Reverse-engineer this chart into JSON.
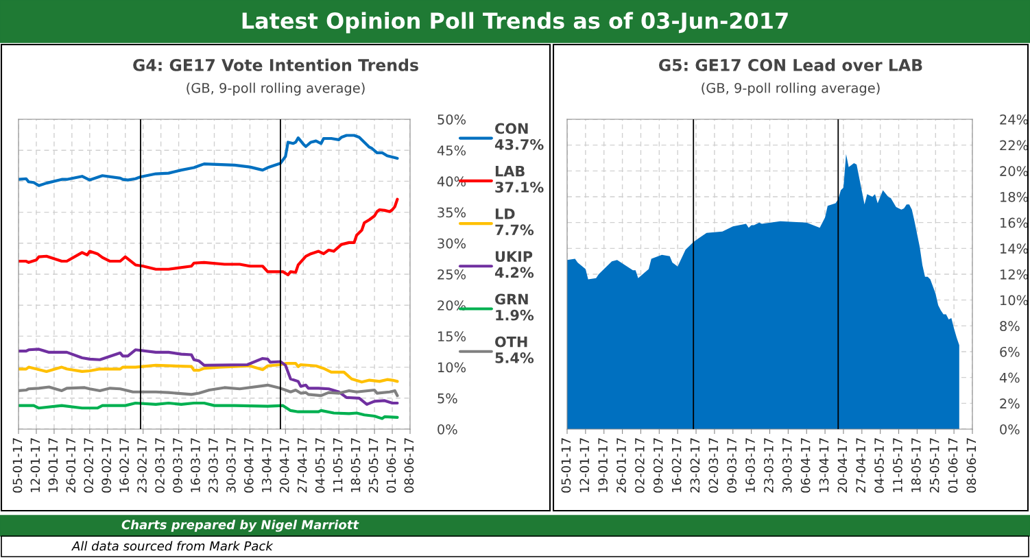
{
  "chart_data": [
    {
      "type": "line",
      "title": "G4: GE17 Vote Intention Trends",
      "subtitle": "(GB, 9-poll rolling average)",
      "annotations": [
        "Latest Opinion Poll Trends as of 03-Jun-2017",
        "Charts prepared by Nigel Marriott",
        "All data sourced from Mark Pack"
      ],
      "xlim": [
        "2017-01-05",
        "2017-06-08"
      ],
      "xticks": [
        {
          "value": "2017-01-05",
          "label": "05-01-17"
        },
        {
          "value": "2017-01-12",
          "label": "12-01-17"
        },
        {
          "value": "2017-01-19",
          "label": "19-01-17"
        },
        {
          "value": "2017-01-26",
          "label": "26-01-17"
        },
        {
          "value": "2017-02-02",
          "label": "02-02-17"
        },
        {
          "value": "2017-02-09",
          "label": "09-02-17"
        },
        {
          "value": "2017-02-16",
          "label": "16-02-17"
        },
        {
          "value": "2017-02-23",
          "label": "23-02-17"
        },
        {
          "value": "2017-03-02",
          "label": "02-03-17"
        },
        {
          "value": "2017-03-09",
          "label": "09-03-17"
        },
        {
          "value": "2017-03-16",
          "label": "16-03-17"
        },
        {
          "value": "2017-03-23",
          "label": "23-03-17"
        },
        {
          "value": "2017-03-30",
          "label": "30-03-17"
        },
        {
          "value": "2017-04-06",
          "label": "06-04-17"
        },
        {
          "value": "2017-04-13",
          "label": "13-04-17"
        },
        {
          "value": "2017-04-20",
          "label": "20-04-17"
        },
        {
          "value": "2017-04-27",
          "label": "27-04-17"
        },
        {
          "value": "2017-05-04",
          "label": "04-05-17"
        },
        {
          "value": "2017-05-11",
          "label": "11-05-17"
        },
        {
          "value": "2017-05-18",
          "label": "18-05-17"
        },
        {
          "value": "2017-05-25",
          "label": "25-05-17"
        },
        {
          "value": "2017-06-01",
          "label": "01-06-17"
        },
        {
          "value": "2017-06-08",
          "label": "08-06-17"
        }
      ],
      "ylim": [
        0,
        50
      ],
      "yticks": [
        {
          "value": 0,
          "label": "0%"
        },
        {
          "value": 5,
          "label": "5%"
        },
        {
          "value": 10,
          "label": "10%"
        },
        {
          "value": 15,
          "label": "15%"
        },
        {
          "value": 20,
          "label": "20%"
        },
        {
          "value": 25,
          "label": "25%"
        },
        {
          "value": 30,
          "label": "30%"
        },
        {
          "value": 35,
          "label": "35%"
        },
        {
          "value": 40,
          "label": "40%"
        },
        {
          "value": 45,
          "label": "45%"
        },
        {
          "value": 50,
          "label": "50%"
        }
      ],
      "grid": true,
      "legend": "right",
      "ref_lines": [
        {
          "axis": "x",
          "value": "2017-02-22",
          "color": "#000000"
        },
        {
          "axis": "x",
          "value": "2017-04-18",
          "color": "#000000"
        }
      ],
      "series": [
        {
          "name": "CON 43.7%",
          "color": "#0070c0",
          "x": [
            "2017-01-05",
            "2017-01-08",
            "2017-01-09",
            "2017-01-11",
            "2017-01-13",
            "2017-01-16",
            "2017-01-22",
            "2017-01-24",
            "2017-01-30",
            "2017-02-02",
            "2017-02-07",
            "2017-02-14",
            "2017-02-15",
            "2017-02-17",
            "2017-02-20",
            "2017-02-22",
            "2017-02-28",
            "2017-03-05",
            "2017-03-10",
            "2017-03-15",
            "2017-03-17",
            "2017-03-19",
            "2017-03-31",
            "2017-04-06",
            "2017-04-11",
            "2017-04-13",
            "2017-04-18",
            "2017-04-20",
            "2017-04-21",
            "2017-04-23",
            "2017-04-24",
            "2017-04-25",
            "2017-04-27",
            "2017-04-28",
            "2017-04-30",
            "2017-05-02",
            "2017-05-04",
            "2017-05-05",
            "2017-05-08",
            "2017-05-11",
            "2017-05-12",
            "2017-05-14",
            "2017-05-17",
            "2017-05-19",
            "2017-05-21",
            "2017-05-23",
            "2017-05-24",
            "2017-05-26",
            "2017-05-28",
            "2017-05-30",
            "2017-06-02",
            "2017-06-03"
          ],
          "values": [
            40.3,
            40.4,
            39.9,
            39.8,
            39.3,
            39.7,
            40.3,
            40.3,
            40.8,
            40.2,
            40.9,
            40.5,
            40.3,
            40.2,
            40.4,
            40.7,
            41.2,
            41.3,
            41.8,
            42.2,
            42.5,
            42.8,
            42.6,
            42.3,
            41.8,
            42.2,
            42.9,
            44.0,
            46.3,
            46.1,
            46.3,
            47.0,
            46.0,
            45.6,
            46.3,
            46.5,
            46.1,
            46.9,
            46.9,
            46.7,
            47.1,
            47.4,
            47.4,
            47.1,
            46.3,
            45.5,
            45.3,
            44.6,
            44.6,
            44.1,
            43.8,
            43.7
          ]
        },
        {
          "name": "LAB 37.1%",
          "color": "#ff0000",
          "x": [
            "2017-01-05",
            "2017-01-08",
            "2017-01-09",
            "2017-01-12",
            "2017-01-13",
            "2017-01-16",
            "2017-01-22",
            "2017-01-24",
            "2017-01-30",
            "2017-02-01",
            "2017-02-02",
            "2017-02-05",
            "2017-02-07",
            "2017-02-10",
            "2017-02-14",
            "2017-02-16",
            "2017-02-20",
            "2017-02-23",
            "2017-02-28",
            "2017-03-05",
            "2017-03-14",
            "2017-03-15",
            "2017-03-19",
            "2017-03-27",
            "2017-04-02",
            "2017-04-06",
            "2017-04-11",
            "2017-04-13",
            "2017-04-19",
            "2017-04-21",
            "2017-04-22",
            "2017-04-24",
            "2017-04-25",
            "2017-04-28",
            "2017-04-30",
            "2017-05-03",
            "2017-05-05",
            "2017-05-07",
            "2017-05-09",
            "2017-05-12",
            "2017-05-15",
            "2017-05-17",
            "2017-05-18",
            "2017-05-20",
            "2017-05-21",
            "2017-05-23",
            "2017-05-25",
            "2017-05-26",
            "2017-05-27",
            "2017-05-29",
            "2017-05-31",
            "2017-06-01",
            "2017-06-02",
            "2017-06-03"
          ],
          "values": [
            27.1,
            27.1,
            26.9,
            27.3,
            27.8,
            27.9,
            27.1,
            27.1,
            28.5,
            28.1,
            28.7,
            28.3,
            27.7,
            27.1,
            27.1,
            27.8,
            26.5,
            26.3,
            25.8,
            25.8,
            26.3,
            26.8,
            26.9,
            26.6,
            26.6,
            26.3,
            26.3,
            25.4,
            25.4,
            24.9,
            25.4,
            25.3,
            26.5,
            27.9,
            28.3,
            28.7,
            28.3,
            28.9,
            28.7,
            29.8,
            30.1,
            30.1,
            31.3,
            32.1,
            33.3,
            33.8,
            34.4,
            35.1,
            35.4,
            35.3,
            35.1,
            35.4,
            35.9,
            37.1
          ]
        },
        {
          "name": "LD 7.7%",
          "color": "#ffc000",
          "x": [
            "2017-01-05",
            "2017-01-08",
            "2017-01-09",
            "2017-01-12",
            "2017-01-16",
            "2017-01-22",
            "2017-01-24",
            "2017-01-30",
            "2017-02-02",
            "2017-02-06",
            "2017-02-14",
            "2017-02-15",
            "2017-02-20",
            "2017-02-28",
            "2017-03-14",
            "2017-03-15",
            "2017-03-17",
            "2017-03-19",
            "2017-03-25",
            "2017-04-06",
            "2017-04-11",
            "2017-04-13",
            "2017-04-18",
            "2017-04-20",
            "2017-04-24",
            "2017-04-25",
            "2017-04-26",
            "2017-05-02",
            "2017-05-05",
            "2017-05-08",
            "2017-05-13",
            "2017-05-16",
            "2017-05-20",
            "2017-05-23",
            "2017-05-27",
            "2017-05-30",
            "2017-06-01",
            "2017-06-03"
          ],
          "values": [
            9.7,
            9.7,
            10.0,
            9.7,
            9.3,
            10.0,
            9.7,
            9.3,
            9.4,
            9.7,
            9.7,
            10.0,
            10.0,
            10.3,
            10.1,
            9.5,
            9.5,
            9.8,
            10.0,
            10.2,
            9.6,
            10.2,
            10.4,
            10.6,
            10.6,
            10.1,
            10.4,
            10.2,
            9.8,
            9.2,
            9.2,
            8.1,
            7.6,
            7.9,
            7.7,
            8.0,
            7.9,
            7.7
          ]
        },
        {
          "name": "UKIP 4.2%",
          "color": "#7030a0",
          "x": [
            "2017-01-05",
            "2017-01-08",
            "2017-01-09",
            "2017-01-13",
            "2017-01-17",
            "2017-01-24",
            "2017-01-30",
            "2017-02-02",
            "2017-02-06",
            "2017-02-11",
            "2017-02-14",
            "2017-02-15",
            "2017-02-17",
            "2017-02-20",
            "2017-02-28",
            "2017-03-05",
            "2017-03-10",
            "2017-03-14",
            "2017-03-15",
            "2017-03-17",
            "2017-03-19",
            "2017-04-05",
            "2017-04-11",
            "2017-04-13",
            "2017-04-14",
            "2017-04-18",
            "2017-04-20",
            "2017-04-22",
            "2017-04-25",
            "2017-04-26",
            "2017-04-28",
            "2017-04-29",
            "2017-05-03",
            "2017-05-07",
            "2017-05-11",
            "2017-05-14",
            "2017-05-19",
            "2017-05-22",
            "2017-05-25",
            "2017-05-29",
            "2017-06-01",
            "2017-06-03"
          ],
          "values": [
            12.6,
            12.6,
            12.8,
            12.9,
            12.4,
            12.4,
            11.5,
            11.3,
            11.2,
            11.9,
            12.3,
            11.8,
            11.8,
            12.8,
            12.4,
            12.4,
            12.1,
            12.0,
            11.2,
            11.0,
            10.3,
            10.4,
            11.4,
            11.3,
            10.8,
            10.9,
            10.3,
            8.1,
            7.7,
            6.9,
            7.1,
            6.6,
            6.6,
            6.5,
            6.0,
            5.1,
            5.0,
            4.0,
            4.5,
            4.6,
            4.2,
            4.2
          ]
        },
        {
          "name": "GRN 1.9%",
          "color": "#00b050",
          "x": [
            "2017-01-05",
            "2017-01-11",
            "2017-01-13",
            "2017-01-22",
            "2017-01-30",
            "2017-02-05",
            "2017-02-07",
            "2017-02-16",
            "2017-02-20",
            "2017-02-28",
            "2017-03-05",
            "2017-03-10",
            "2017-03-15",
            "2017-03-19",
            "2017-03-23",
            "2017-03-31",
            "2017-04-13",
            "2017-04-19",
            "2017-04-22",
            "2017-04-25",
            "2017-05-03",
            "2017-05-04",
            "2017-05-09",
            "2017-05-15",
            "2017-05-18",
            "2017-05-21",
            "2017-05-25",
            "2017-05-28",
            "2017-05-29",
            "2017-06-03"
          ],
          "values": [
            3.8,
            3.8,
            3.4,
            3.8,
            3.4,
            3.4,
            3.8,
            3.8,
            4.2,
            4.0,
            4.2,
            4.0,
            4.2,
            4.2,
            3.8,
            3.8,
            3.7,
            3.8,
            3.0,
            2.8,
            2.8,
            3.0,
            2.6,
            2.5,
            2.6,
            2.3,
            2.1,
            1.7,
            2.0,
            1.9
          ]
        },
        {
          "name": "OTH 5.4%",
          "color": "#808080",
          "x": [
            "2017-01-05",
            "2017-01-08",
            "2017-01-09",
            "2017-01-13",
            "2017-01-17",
            "2017-01-22",
            "2017-01-24",
            "2017-01-31",
            "2017-02-02",
            "2017-02-06",
            "2017-02-10",
            "2017-02-14",
            "2017-02-19",
            "2017-02-28",
            "2017-03-05",
            "2017-03-14",
            "2017-03-17",
            "2017-03-21",
            "2017-03-27",
            "2017-04-02",
            "2017-04-13",
            "2017-04-18",
            "2017-04-20",
            "2017-04-22",
            "2017-04-24",
            "2017-04-26",
            "2017-04-28",
            "2017-04-29",
            "2017-05-04",
            "2017-05-07",
            "2017-05-11",
            "2017-05-15",
            "2017-05-18",
            "2017-05-25",
            "2017-05-26",
            "2017-05-31",
            "2017-06-02",
            "2017-06-03"
          ],
          "values": [
            6.2,
            6.3,
            6.5,
            6.6,
            6.8,
            6.2,
            6.6,
            6.7,
            6.5,
            6.2,
            6.6,
            6.5,
            6.0,
            6.0,
            5.9,
            5.6,
            5.8,
            6.3,
            6.7,
            6.5,
            7.1,
            6.6,
            6.3,
            6.0,
            6.3,
            5.8,
            5.9,
            5.6,
            5.4,
            5.9,
            5.8,
            6.2,
            6.0,
            6.3,
            5.8,
            6.0,
            6.2,
            5.4
          ]
        }
      ]
    },
    {
      "type": "area",
      "title": "G5: GE17 CON Lead over LAB",
      "subtitle": "(GB, 9-poll rolling average)",
      "xlim": [
        "2017-01-05",
        "2017-06-08"
      ],
      "xticks": [
        {
          "value": "2017-01-05",
          "label": "05-01-17"
        },
        {
          "value": "2017-01-12",
          "label": "12-01-17"
        },
        {
          "value": "2017-01-19",
          "label": "19-01-17"
        },
        {
          "value": "2017-01-26",
          "label": "26-01-17"
        },
        {
          "value": "2017-02-02",
          "label": "02-02-17"
        },
        {
          "value": "2017-02-09",
          "label": "09-02-17"
        },
        {
          "value": "2017-02-16",
          "label": "16-02-17"
        },
        {
          "value": "2017-02-23",
          "label": "23-02-17"
        },
        {
          "value": "2017-03-02",
          "label": "02-03-17"
        },
        {
          "value": "2017-03-09",
          "label": "09-03-17"
        },
        {
          "value": "2017-03-16",
          "label": "16-03-17"
        },
        {
          "value": "2017-03-23",
          "label": "23-03-17"
        },
        {
          "value": "2017-03-30",
          "label": "30-03-17"
        },
        {
          "value": "2017-04-06",
          "label": "06-04-17"
        },
        {
          "value": "2017-04-13",
          "label": "13-04-17"
        },
        {
          "value": "2017-04-20",
          "label": "20-04-17"
        },
        {
          "value": "2017-04-27",
          "label": "27-04-17"
        },
        {
          "value": "2017-05-04",
          "label": "04-05-17"
        },
        {
          "value": "2017-05-11",
          "label": "11-05-17"
        },
        {
          "value": "2017-05-18",
          "label": "18-05-17"
        },
        {
          "value": "2017-05-25",
          "label": "25-05-17"
        },
        {
          "value": "2017-06-01",
          "label": "01-06-17"
        },
        {
          "value": "2017-06-08",
          "label": "08-06-17"
        }
      ],
      "ylim": [
        0,
        24
      ],
      "yticks": [
        {
          "value": 0,
          "label": "0%"
        },
        {
          "value": 2,
          "label": "2%"
        },
        {
          "value": 4,
          "label": "4%"
        },
        {
          "value": 6,
          "label": "6%"
        },
        {
          "value": 8,
          "label": "8%"
        },
        {
          "value": 10,
          "label": "10%"
        },
        {
          "value": 12,
          "label": "12%"
        },
        {
          "value": 14,
          "label": "14%"
        },
        {
          "value": 16,
          "label": "16%"
        },
        {
          "value": 18,
          "label": "18%"
        },
        {
          "value": 20,
          "label": "20%"
        },
        {
          "value": 22,
          "label": "22%"
        },
        {
          "value": 24,
          "label": "24%"
        }
      ],
      "grid": true,
      "ref_lines": [
        {
          "axis": "x",
          "value": "2017-02-22",
          "color": "#000000"
        },
        {
          "axis": "x",
          "value": "2017-04-18",
          "color": "#000000"
        }
      ],
      "series": [
        {
          "color": "#0070c0",
          "x": [
            "2017-01-05",
            "2017-01-08",
            "2017-01-09",
            "2017-01-12",
            "2017-01-13",
            "2017-01-16",
            "2017-01-17",
            "2017-01-22",
            "2017-01-24",
            "2017-01-30",
            "2017-01-31",
            "2017-02-01",
            "2017-02-05",
            "2017-02-06",
            "2017-02-10",
            "2017-02-13",
            "2017-02-14",
            "2017-02-16",
            "2017-02-19",
            "2017-02-22",
            "2017-02-27",
            "2017-03-05",
            "2017-03-09",
            "2017-03-14",
            "2017-03-15",
            "2017-03-16",
            "2017-03-17",
            "2017-03-19",
            "2017-03-20",
            "2017-03-27",
            "2017-04-06",
            "2017-04-11",
            "2017-04-13",
            "2017-04-14",
            "2017-04-17",
            "2017-04-18",
            "2017-04-19",
            "2017-04-20",
            "2017-04-21",
            "2017-04-22",
            "2017-04-24",
            "2017-04-25",
            "2017-04-28",
            "2017-04-29",
            "2017-05-01",
            "2017-05-02",
            "2017-05-03",
            "2017-05-05",
            "2017-05-07",
            "2017-05-08",
            "2017-05-10",
            "2017-05-12",
            "2017-05-13",
            "2017-05-14",
            "2017-05-15",
            "2017-05-16",
            "2017-05-17",
            "2017-05-19",
            "2017-05-20",
            "2017-05-21",
            "2017-05-22",
            "2017-05-23",
            "2017-05-25",
            "2017-05-26",
            "2017-05-27",
            "2017-05-28",
            "2017-05-29",
            "2017-05-30",
            "2017-05-31",
            "2017-06-01",
            "2017-06-02",
            "2017-06-03"
          ],
          "values": [
            13.1,
            13.2,
            12.9,
            12.4,
            11.6,
            11.7,
            12.0,
            13.0,
            13.1,
            12.3,
            12.3,
            11.7,
            12.4,
            13.2,
            13.5,
            13.4,
            12.9,
            12.6,
            13.9,
            14.5,
            15.2,
            15.3,
            15.7,
            15.9,
            15.6,
            15.8,
            15.8,
            16.0,
            15.9,
            16.1,
            16.0,
            15.6,
            16.4,
            17.3,
            17.5,
            17.8,
            18.5,
            18.7,
            21.3,
            20.3,
            20.6,
            20.5,
            17.4,
            18.2,
            18.0,
            18.2,
            17.5,
            18.5,
            18.0,
            17.9,
            17.2,
            17.0,
            17.1,
            17.4,
            17.4,
            17.0,
            16.1,
            14.1,
            12.7,
            11.8,
            11.8,
            11.6,
            10.5,
            9.6,
            9.2,
            8.9,
            8.9,
            8.5,
            8.6,
            7.8,
            7.1,
            6.5
          ]
        }
      ]
    }
  ]
}
